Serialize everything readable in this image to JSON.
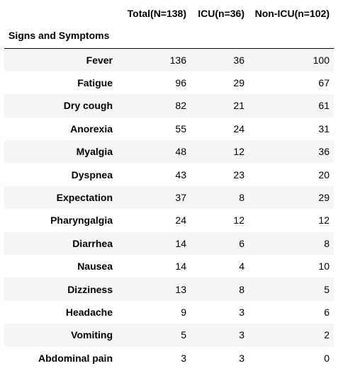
{
  "table": {
    "columns": [
      "Total(N=138)",
      "ICU(n=36)",
      "Non-ICU(n=102)"
    ],
    "index_header": "Signs and Symptoms",
    "rows": [
      {
        "label": "Fever",
        "values": [
          "136",
          "36",
          "100"
        ]
      },
      {
        "label": "Fatigue",
        "values": [
          "96",
          "29",
          "67"
        ]
      },
      {
        "label": "Dry cough",
        "values": [
          "82",
          "21",
          "61"
        ]
      },
      {
        "label": "Anorexia",
        "values": [
          "55",
          "24",
          "31"
        ]
      },
      {
        "label": "Myalgia",
        "values": [
          "48",
          "12",
          "36"
        ]
      },
      {
        "label": "Dyspnea",
        "values": [
          "43",
          "23",
          "20"
        ]
      },
      {
        "label": "Expectation",
        "values": [
          "37",
          "8",
          "29"
        ]
      },
      {
        "label": "Pharyngalgia",
        "values": [
          "24",
          "12",
          "12"
        ]
      },
      {
        "label": "Diarrhea",
        "values": [
          "14",
          "6",
          "8"
        ]
      },
      {
        "label": "Nausea",
        "values": [
          "14",
          "4",
          "10"
        ]
      },
      {
        "label": "Dizziness",
        "values": [
          "13",
          "8",
          "5"
        ]
      },
      {
        "label": "Headache",
        "values": [
          "9",
          "3",
          "6"
        ]
      },
      {
        "label": "Vomiting",
        "values": [
          "5",
          "3",
          "2"
        ]
      },
      {
        "label": "Abdominal pain",
        "values": [
          "3",
          "3",
          "0"
        ]
      }
    ]
  }
}
